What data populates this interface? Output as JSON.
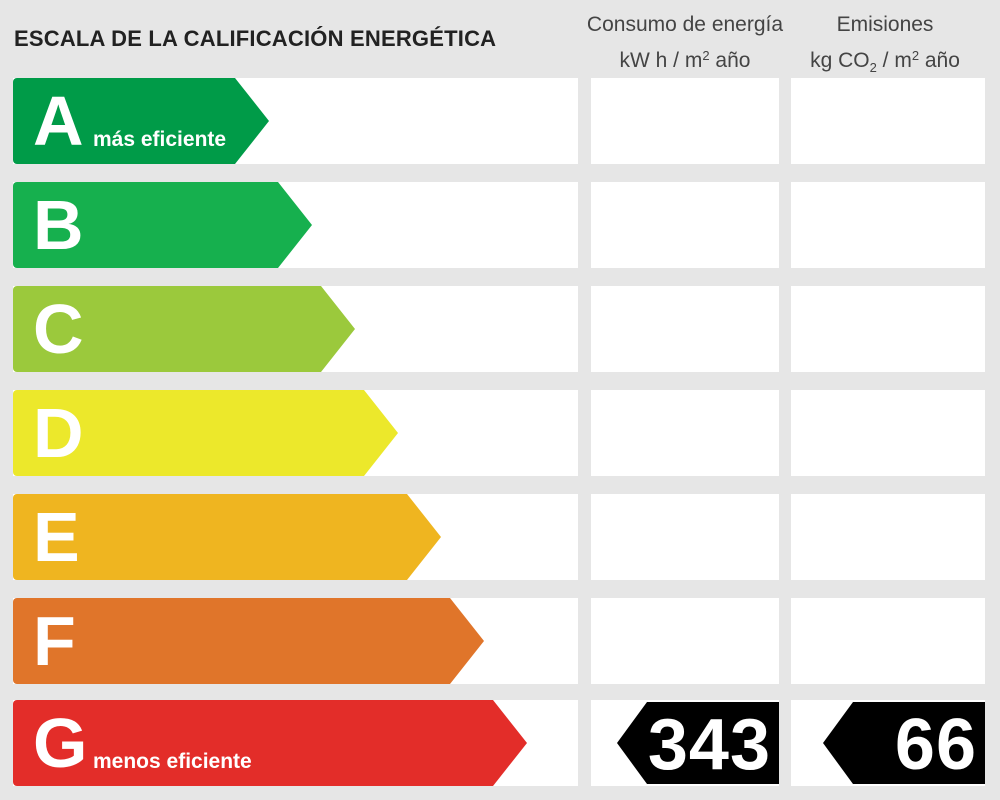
{
  "header": {
    "title": "ESCALA DE LA CALIFICACIÓN ENERGÉTICA",
    "energy_line1": "Consumo de energía",
    "energy_line2_a": "kW h  / m",
    "energy_line2_sup": "2",
    "energy_line2_b": " año",
    "emis_line1": "Emisiones",
    "emis_line2_a": "kg CO",
    "emis_line2_sub": "2",
    "emis_line2_b": "  / m",
    "emis_line2_sup": "2",
    "emis_line2_c": " año"
  },
  "ratings": [
    {
      "letter": "A",
      "color": "#009b48",
      "sub": "más eficiente"
    },
    {
      "letter": "B",
      "color": "#16b04e"
    },
    {
      "letter": "C",
      "color": "#9bc93c"
    },
    {
      "letter": "D",
      "color": "#ece82b"
    },
    {
      "letter": "E",
      "color": "#efb520"
    },
    {
      "letter": "F",
      "color": "#e0752a"
    },
    {
      "letter": "G",
      "color": "#e32d29",
      "sub": "menos eficiente"
    }
  ],
  "result": {
    "rating": "G",
    "energy_value": "343",
    "emissions_value": "66"
  }
}
